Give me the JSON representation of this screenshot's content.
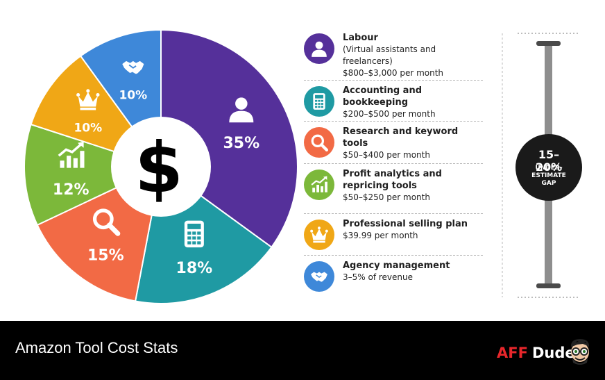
{
  "chart_data": {
    "type": "pie",
    "center_symbol": "$",
    "slices": [
      {
        "label": "Labour",
        "value": 35,
        "value_label": "35%",
        "color": "#55309a",
        "icon": "person-icon"
      },
      {
        "label": "Accounting and bookkeeping",
        "value": 18,
        "value_label": "18%",
        "color": "#1f9aa3",
        "icon": "calculator-icon"
      },
      {
        "label": "Research and keyword tools",
        "value": 15,
        "value_label": "15%",
        "color": "#f26a45",
        "icon": "magnifier-icon"
      },
      {
        "label": "Profit analytics and repricing tools",
        "value": 12,
        "value_label": "12%",
        "color": "#7cb83a",
        "icon": "growth-chart-icon"
      },
      {
        "label": "Professional selling plan",
        "value": 10,
        "value_label": "10%",
        "color": "#f0a716",
        "icon": "crown-icon"
      },
      {
        "label": "Agency management",
        "value": 10,
        "value_label": "10%",
        "color": "#3e88d9",
        "icon": "handshake-icon"
      }
    ]
  },
  "legend": [
    {
      "title": "Labour",
      "subtitle": "(Virtual assistants and freelancers)",
      "cost": "$800–$3,000 per month",
      "color": "#55309a",
      "icon": "person-icon"
    },
    {
      "title": "Accounting and bookkeeping",
      "cost": "$200–$500 per month",
      "color": "#1f9aa3",
      "icon": "calculator-icon"
    },
    {
      "title": "Research and keyword tools",
      "cost": "$50–$400 per month",
      "color": "#f26a45",
      "icon": "magnifier-icon"
    },
    {
      "title": "Profit analytics and repricing tools",
      "cost": "$50–$250 per month",
      "color": "#7cb83a",
      "icon": "growth-chart-icon"
    },
    {
      "title": "Professional selling plan",
      "cost": "$39.99 per month",
      "color": "#f0a716",
      "icon": "crown-icon"
    },
    {
      "title": "Agency management",
      "cost": "3–5% of revenue",
      "color": "#3e88d9",
      "icon": "handshake-icon"
    }
  ],
  "gap_gauge": {
    "value_label": "15–20%",
    "caption": "UNDER-\nESTIMATE\nGAP"
  },
  "footer": {
    "title": "Amazon Tool Cost Stats",
    "brand_aff": "AFF",
    "brand_dude": "Dude"
  }
}
